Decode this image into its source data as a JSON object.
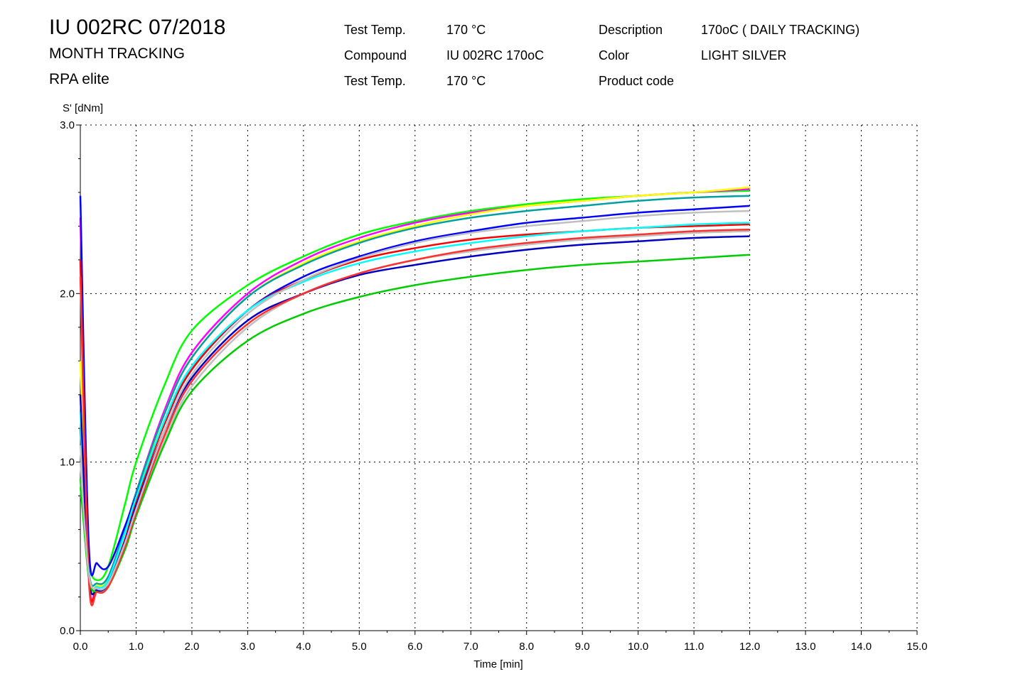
{
  "header": {
    "title": "IU 002RC 07/2018",
    "subtitle_1": "MONTH TRACKING",
    "subtitle_2": "RPA elite",
    "fields": [
      {
        "label": "Test Temp.",
        "value": "170 °C"
      },
      {
        "label": "Compound",
        "value": "IU 002RC 170oC"
      },
      {
        "label": "Test Temp.",
        "value": "170 °C"
      },
      {
        "label": "Description",
        "value": "170oC ( DAILY TRACKING)"
      },
      {
        "label": "Color",
        "value": "LIGHT SILVER"
      },
      {
        "label": "Product code",
        "value": ""
      }
    ]
  },
  "chart_data": {
    "type": "line",
    "xlabel": "Time [min]",
    "ylabel": "S' [dNm]",
    "xlim": [
      0,
      15
    ],
    "ylim": [
      0,
      3
    ],
    "x_ticks": [
      "0.0",
      "1.0",
      "2.0",
      "3.0",
      "4.0",
      "5.0",
      "6.0",
      "7.0",
      "8.0",
      "9.0",
      "10.0",
      "11.0",
      "12.0",
      "13.0",
      "14.0",
      "15.0"
    ],
    "y_ticks": [
      "0.0",
      "1.0",
      "2.0",
      "3.0"
    ],
    "grid": true,
    "x": [
      0.0,
      0.15,
      0.3,
      0.5,
      0.8,
      1.0,
      1.5,
      2.0,
      3.0,
      4.0,
      5.0,
      6.0,
      7.0,
      8.0,
      9.0,
      10.0,
      11.0,
      12.0
    ],
    "series": [
      {
        "color": "#00ff00",
        "values": [
          0.85,
          0.4,
          0.3,
          0.38,
          0.75,
          1.0,
          1.45,
          1.78,
          2.05,
          2.22,
          2.35,
          2.43,
          2.49,
          2.53,
          2.56,
          2.58,
          2.6,
          2.61
        ]
      },
      {
        "color": "#ff00ff",
        "values": [
          2.45,
          0.36,
          0.27,
          0.32,
          0.6,
          0.82,
          1.3,
          1.65,
          2.0,
          2.2,
          2.33,
          2.42,
          2.48,
          2.52,
          2.55,
          2.58,
          2.6,
          2.62
        ]
      },
      {
        "color": "#ffff00",
        "values": [
          1.6,
          0.35,
          0.27,
          0.31,
          0.58,
          0.8,
          1.28,
          1.62,
          1.98,
          2.18,
          2.31,
          2.4,
          2.47,
          2.52,
          2.55,
          2.58,
          2.6,
          2.63
        ]
      },
      {
        "color": "#00a0a0",
        "values": [
          1.2,
          0.36,
          0.28,
          0.32,
          0.6,
          0.82,
          1.28,
          1.62,
          1.98,
          2.17,
          2.3,
          2.39,
          2.45,
          2.49,
          2.52,
          2.55,
          2.57,
          2.58
        ]
      },
      {
        "color": "#0000ff",
        "values": [
          2.58,
          0.52,
          0.4,
          0.38,
          0.62,
          0.8,
          1.22,
          1.55,
          1.9,
          2.1,
          2.22,
          2.31,
          2.37,
          2.42,
          2.45,
          2.48,
          2.5,
          2.52
        ]
      },
      {
        "color": "#ff0000",
        "values": [
          2.2,
          0.34,
          0.25,
          0.28,
          0.54,
          0.76,
          1.22,
          1.55,
          1.9,
          2.08,
          2.2,
          2.27,
          2.32,
          2.35,
          2.37,
          2.39,
          2.4,
          2.41
        ]
      },
      {
        "color": "#00ffff",
        "values": [
          1.3,
          0.35,
          0.26,
          0.3,
          0.58,
          0.79,
          1.24,
          1.57,
          1.9,
          2.07,
          2.18,
          2.25,
          2.3,
          2.34,
          2.37,
          2.39,
          2.41,
          2.42
        ]
      },
      {
        "color": "#c0c0c0",
        "values": [
          1.1,
          0.33,
          0.25,
          0.27,
          0.48,
          0.68,
          1.12,
          1.45,
          1.8,
          2.0,
          2.12,
          2.2,
          2.25,
          2.29,
          2.32,
          2.34,
          2.36,
          2.37
        ]
      },
      {
        "color": "#0000c0",
        "values": [
          1.4,
          0.33,
          0.24,
          0.28,
          0.53,
          0.74,
          1.18,
          1.5,
          1.84,
          2.0,
          2.11,
          2.17,
          2.22,
          2.26,
          2.29,
          2.31,
          2.33,
          2.34
        ]
      },
      {
        "color": "#00cc00",
        "values": [
          0.9,
          0.32,
          0.23,
          0.26,
          0.48,
          0.68,
          1.1,
          1.42,
          1.72,
          1.88,
          1.98,
          2.05,
          2.1,
          2.14,
          2.17,
          2.19,
          2.21,
          2.23
        ]
      },
      {
        "color": "#ff3030",
        "values": [
          2.1,
          0.31,
          0.23,
          0.26,
          0.5,
          0.7,
          1.15,
          1.48,
          1.82,
          2.0,
          2.12,
          2.2,
          2.26,
          2.3,
          2.33,
          2.35,
          2.37,
          2.38
        ]
      },
      {
        "color": "#c0c0c0",
        "values": [
          1.0,
          0.34,
          0.25,
          0.28,
          0.52,
          0.72,
          1.18,
          1.52,
          1.88,
          2.08,
          2.21,
          2.3,
          2.36,
          2.4,
          2.43,
          2.46,
          2.48,
          2.49
        ]
      }
    ]
  }
}
